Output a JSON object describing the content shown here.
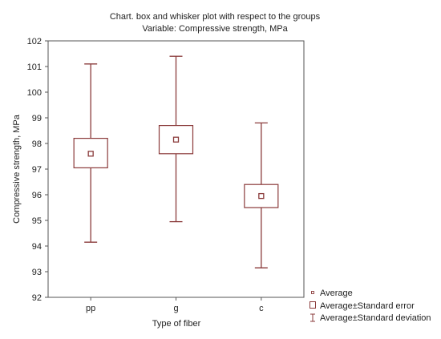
{
  "chart_data": {
    "type": "box",
    "title": "Chart. box and whisker plot with respect to the groups",
    "subtitle": "Variable: Compressive strength, MPa",
    "xlabel": "Type of fiber",
    "ylabel": "Compressive strength, MPa",
    "ylim": [
      92,
      102
    ],
    "yticks": [
      "92",
      "93",
      "94",
      "95",
      "96",
      "97",
      "98",
      "99",
      "100",
      "101",
      "102"
    ],
    "categories": [
      "pp",
      "g",
      "c"
    ],
    "groups": [
      {
        "category": "pp",
        "mean": 97.6,
        "se_low": 97.05,
        "se_high": 98.2,
        "sd_low": 94.15,
        "sd_high": 101.1
      },
      {
        "category": "g",
        "mean": 98.15,
        "se_low": 97.6,
        "se_high": 98.7,
        "sd_low": 94.95,
        "sd_high": 101.4
      },
      {
        "category": "c",
        "mean": 95.95,
        "se_low": 95.5,
        "se_high": 96.4,
        "sd_low": 93.15,
        "sd_high": 98.8
      }
    ],
    "legend": {
      "placement": "bottom-right",
      "entries": [
        "Average",
        "Average±Standard error",
        "Average±Standard deviation"
      ]
    },
    "grid": false,
    "colors": {
      "series": "#8a3a3a",
      "frame": "#555555"
    }
  }
}
